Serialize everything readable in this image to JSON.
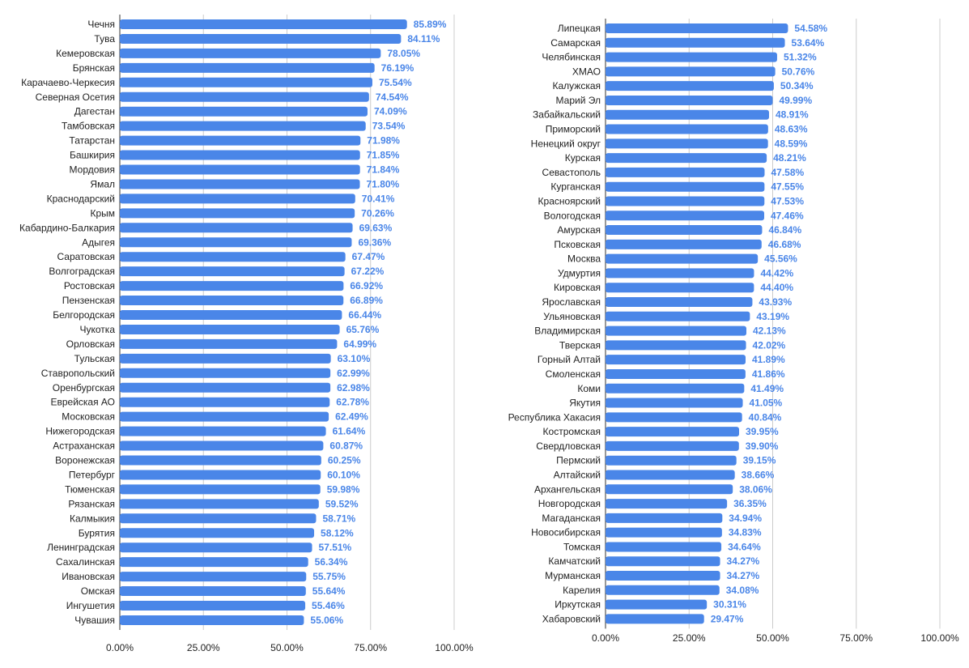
{
  "colors": {
    "bar": "#4a86e8",
    "value_label": "#4a86e8",
    "grid": "#cccccc",
    "text": "#222222"
  },
  "chart_data": [
    {
      "type": "bar",
      "orientation": "horizontal",
      "title": "",
      "xlabel": "",
      "ylabel": "",
      "xlim": [
        0,
        100
      ],
      "x_ticks": [
        "0.00%",
        "25.00%",
        "50.00%",
        "75.00%",
        "100.00%"
      ],
      "grid": true,
      "legend": "none",
      "categories": [
        "Чечня",
        "Тува",
        "Кемеровская",
        "Брянская",
        "Карачаево-Черкесия",
        "Северная Осетия",
        "Дагестан",
        "Тамбовская",
        "Татарстан",
        "Башкирия",
        "Мордовия",
        "Ямал",
        "Краснодарский",
        "Крым",
        "Кабардино-Балкария",
        "Адыгея",
        "Саратовская",
        "Волгоградская",
        "Ростовская",
        "Пензенская",
        "Белгородская",
        "Чукотка",
        "Орловская",
        "Тульская",
        "Ставропольский",
        "Оренбургская",
        "Еврейская АО",
        "Московская",
        "Нижегородская",
        "Астраханская",
        "Воронежская",
        "Петербург",
        "Тюменская",
        "Рязанская",
        "Калмыкия",
        "Бурятия",
        "Ленинградская",
        "Сахалинская",
        "Ивановская",
        "Омская",
        "Ингушетия",
        "Чувашия"
      ],
      "values": [
        85.89,
        84.11,
        78.05,
        76.19,
        75.54,
        74.54,
        74.09,
        73.54,
        71.98,
        71.85,
        71.84,
        71.8,
        70.41,
        70.26,
        69.63,
        69.36,
        67.47,
        67.22,
        66.92,
        66.89,
        66.44,
        65.76,
        64.99,
        63.1,
        62.99,
        62.98,
        62.78,
        62.49,
        61.64,
        60.87,
        60.25,
        60.1,
        59.98,
        59.52,
        58.71,
        58.12,
        57.51,
        56.34,
        55.75,
        55.64,
        55.46,
        55.06
      ],
      "value_labels": [
        "85.89%",
        "84.11%",
        "78.05%",
        "76.19%",
        "75.54%",
        "74.54%",
        "74.09%",
        "73.54%",
        "71.98%",
        "71.85%",
        "71.84%",
        "71.80%",
        "70.41%",
        "70.26%",
        "69.63%",
        "69.36%",
        "67.47%",
        "67.22%",
        "66.92%",
        "66.89%",
        "66.44%",
        "65.76%",
        "64.99%",
        "63.10%",
        "62.99%",
        "62.98%",
        "62.78%",
        "62.49%",
        "61.64%",
        "60.87%",
        "60.25%",
        "60.10%",
        "59.98%",
        "59.52%",
        "58.71%",
        "58.12%",
        "57.51%",
        "56.34%",
        "55.75%",
        "55.64%",
        "55.46%",
        "55.06%"
      ]
    },
    {
      "type": "bar",
      "orientation": "horizontal",
      "title": "",
      "xlabel": "",
      "ylabel": "",
      "xlim": [
        0,
        100
      ],
      "x_ticks": [
        "0.00%",
        "25.00%",
        "50.00%",
        "75.00%",
        "100.00%"
      ],
      "grid": true,
      "legend": "none",
      "categories": [
        "Липецкая",
        "Самарская",
        "Челябинская",
        "ХМАО",
        "Калужская",
        "Марий Эл",
        "Забайкальский",
        "Приморский",
        "Ненецкий округ",
        "Курская",
        "Севастополь",
        "Курганская",
        "Красноярский",
        "Вологодская",
        "Амурская",
        "Псковская",
        "Москва",
        "Удмуртия",
        "Кировская",
        "Ярославская",
        "Ульяновская",
        "Владимирская",
        "Тверская",
        "Горный Алтай",
        "Смоленская",
        "Коми",
        "Якутия",
        "Республика Хакасия",
        "Костромская",
        "Свердловская",
        "Пермский",
        "Алтайский",
        "Архангельская",
        "Новгородская",
        "Магаданская",
        "Новосибирская",
        "Томская",
        "Камчатский",
        "Мурманская",
        "Карелия",
        "Иркутская",
        "Хабаровский"
      ],
      "values": [
        54.58,
        53.64,
        51.32,
        50.76,
        50.34,
        49.99,
        48.91,
        48.63,
        48.59,
        48.21,
        47.58,
        47.55,
        47.53,
        47.46,
        46.84,
        46.68,
        45.56,
        44.42,
        44.4,
        43.93,
        43.19,
        42.13,
        42.02,
        41.89,
        41.86,
        41.49,
        41.05,
        40.84,
        39.95,
        39.9,
        39.15,
        38.66,
        38.06,
        36.35,
        34.94,
        34.83,
        34.64,
        34.27,
        34.27,
        34.08,
        30.31,
        29.47
      ],
      "value_labels": [
        "54.58%",
        "53.64%",
        "51.32%",
        "50.76%",
        "50.34%",
        "49.99%",
        "48.91%",
        "48.63%",
        "48.59%",
        "48.21%",
        "47.58%",
        "47.55%",
        "47.53%",
        "47.46%",
        "46.84%",
        "46.68%",
        "45.56%",
        "44.42%",
        "44.40%",
        "43.93%",
        "43.19%",
        "42.13%",
        "42.02%",
        "41.89%",
        "41.86%",
        "41.49%",
        "41.05%",
        "40.84%",
        "39.95%",
        "39.90%",
        "39.15%",
        "38.66%",
        "38.06%",
        "36.35%",
        "34.94%",
        "34.83%",
        "34.64%",
        "34.27%",
        "34.27%",
        "34.08%",
        "30.31%",
        "29.47%"
      ]
    }
  ]
}
